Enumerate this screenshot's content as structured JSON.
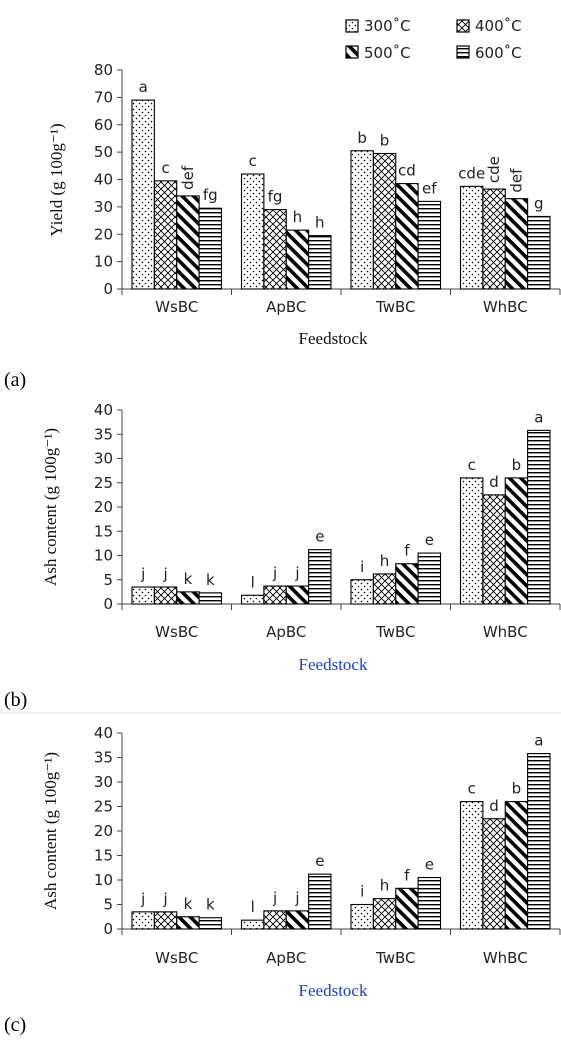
{
  "legend": [
    {
      "label": "300˚C",
      "pattern": "dots"
    },
    {
      "label": "400˚C",
      "pattern": "cross"
    },
    {
      "label": "500˚C",
      "pattern": "diag"
    },
    {
      "label": "600˚C",
      "pattern": "horiz"
    }
  ],
  "colors": {
    "xlabel_a": "#111111",
    "xlabel_bc": "#1a3fd6",
    "axis": "#444444"
  },
  "chart_data": [
    {
      "type": "bar",
      "panel_label": "(a)",
      "ylabel": "Yield (g 100g⁻¹)",
      "xlabel": "Feedstock",
      "ylim": [
        0,
        80
      ],
      "yticks": [
        0,
        10,
        20,
        30,
        40,
        50,
        60,
        70,
        80
      ],
      "categories": [
        "WsBC",
        "ApBC",
        "TwBC",
        "WhBC"
      ],
      "series": [
        {
          "name": "300˚C",
          "values": [
            69,
            42,
            50.5,
            37.5
          ]
        },
        {
          "name": "400˚C",
          "values": [
            39.5,
            29,
            49.5,
            36.5
          ]
        },
        {
          "name": "500˚C",
          "values": [
            34,
            21.5,
            38.5,
            33
          ]
        },
        {
          "name": "600˚C",
          "values": [
            29.5,
            19.5,
            32,
            26.5
          ]
        }
      ],
      "significance": [
        [
          "a",
          "c",
          "b",
          "cde"
        ],
        [
          "c",
          "fg",
          "b",
          "cde"
        ],
        [
          "def",
          "h",
          "cd",
          "def"
        ],
        [
          "fg",
          "h",
          "ef",
          "g"
        ]
      ],
      "rotated_labels": [
        [
          "def",
          "fg",
          "ef",
          "cde",
          "cde",
          "def"
        ]
      ]
    },
    {
      "type": "bar",
      "panel_label": "(b)",
      "ylabel": "Ash content (g 100g⁻¹)",
      "xlabel": "Feedstock",
      "ylim": [
        0,
        40
      ],
      "yticks": [
        0,
        5,
        10,
        15,
        20,
        25,
        30,
        35,
        40
      ],
      "categories": [
        "WsBC",
        "ApBC",
        "TwBC",
        "WhBC"
      ],
      "series": [
        {
          "name": "300˚C",
          "values": [
            3.5,
            1.8,
            5,
            26
          ]
        },
        {
          "name": "400˚C",
          "values": [
            3.5,
            3.7,
            6.2,
            22.5
          ]
        },
        {
          "name": "500˚C",
          "values": [
            2.5,
            3.7,
            8.3,
            26
          ]
        },
        {
          "name": "600˚C",
          "values": [
            2.3,
            11.2,
            10.5,
            35.8
          ]
        }
      ],
      "significance": [
        [
          "j",
          "l",
          "i",
          "c"
        ],
        [
          "j",
          "j",
          "h",
          "d"
        ],
        [
          "k",
          "j",
          "f",
          "b"
        ],
        [
          "k",
          "e",
          "e",
          "a"
        ]
      ]
    },
    {
      "type": "bar",
      "panel_label": "(c)",
      "ylabel": "Ash content (g 100g⁻¹)",
      "xlabel": "Feedstock",
      "ylim": [
        0,
        40
      ],
      "yticks": [
        0,
        5,
        10,
        15,
        20,
        25,
        30,
        35,
        40
      ],
      "categories": [
        "WsBC",
        "ApBC",
        "TwBC",
        "WhBC"
      ],
      "series": [
        {
          "name": "300˚C",
          "values": [
            3.5,
            1.8,
            5,
            26
          ]
        },
        {
          "name": "400˚C",
          "values": [
            3.5,
            3.7,
            6.2,
            22.5
          ]
        },
        {
          "name": "500˚C",
          "values": [
            2.5,
            3.7,
            8.3,
            26
          ]
        },
        {
          "name": "600˚C",
          "values": [
            2.3,
            11.2,
            10.5,
            35.8
          ]
        }
      ],
      "significance": [
        [
          "j",
          "l",
          "i",
          "c"
        ],
        [
          "j",
          "j",
          "h",
          "d"
        ],
        [
          "k",
          "j",
          "f",
          "b"
        ],
        [
          "k",
          "e",
          "e",
          "a"
        ]
      ]
    }
  ]
}
